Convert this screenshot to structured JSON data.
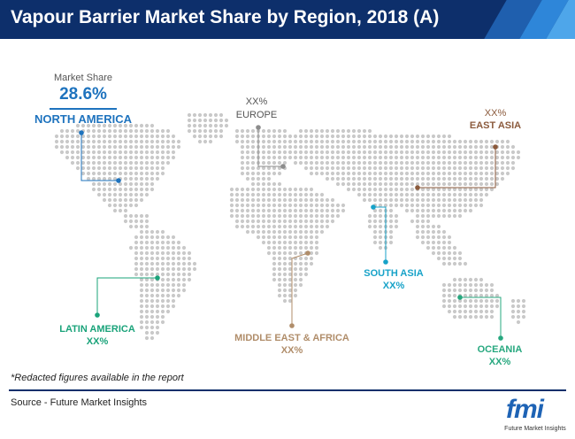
{
  "title": "Vapour Barrier Market Share by Region, 2018 (A)",
  "chart_data": {
    "type": "map",
    "legend_title": "Market Share",
    "regions": [
      {
        "name": "NORTH AMERICA",
        "value": "28.6%",
        "color": "#1e73be"
      },
      {
        "name": "EUROPE",
        "value": "XX%",
        "color": "#8c8c8c"
      },
      {
        "name": "EAST ASIA",
        "value": "XX%",
        "color": "#8b5a3c"
      },
      {
        "name": "SOUTH ASIA",
        "value": "XX%",
        "color": "#17a2c8"
      },
      {
        "name": "LATIN AMERICA",
        "value": "XX%",
        "color": "#1aa37a"
      },
      {
        "name": "MIDDLE EAST & AFRICA",
        "value": "XX%",
        "color": "#b08d6a"
      },
      {
        "name": "OCEANIA",
        "value": "XX%",
        "color": "#27a87f"
      }
    ]
  },
  "note": "*Redacted figures available in the report",
  "source": "Source - Future Market Insights",
  "logo": {
    "mark": "fmi",
    "text": "Future Market Insights"
  }
}
